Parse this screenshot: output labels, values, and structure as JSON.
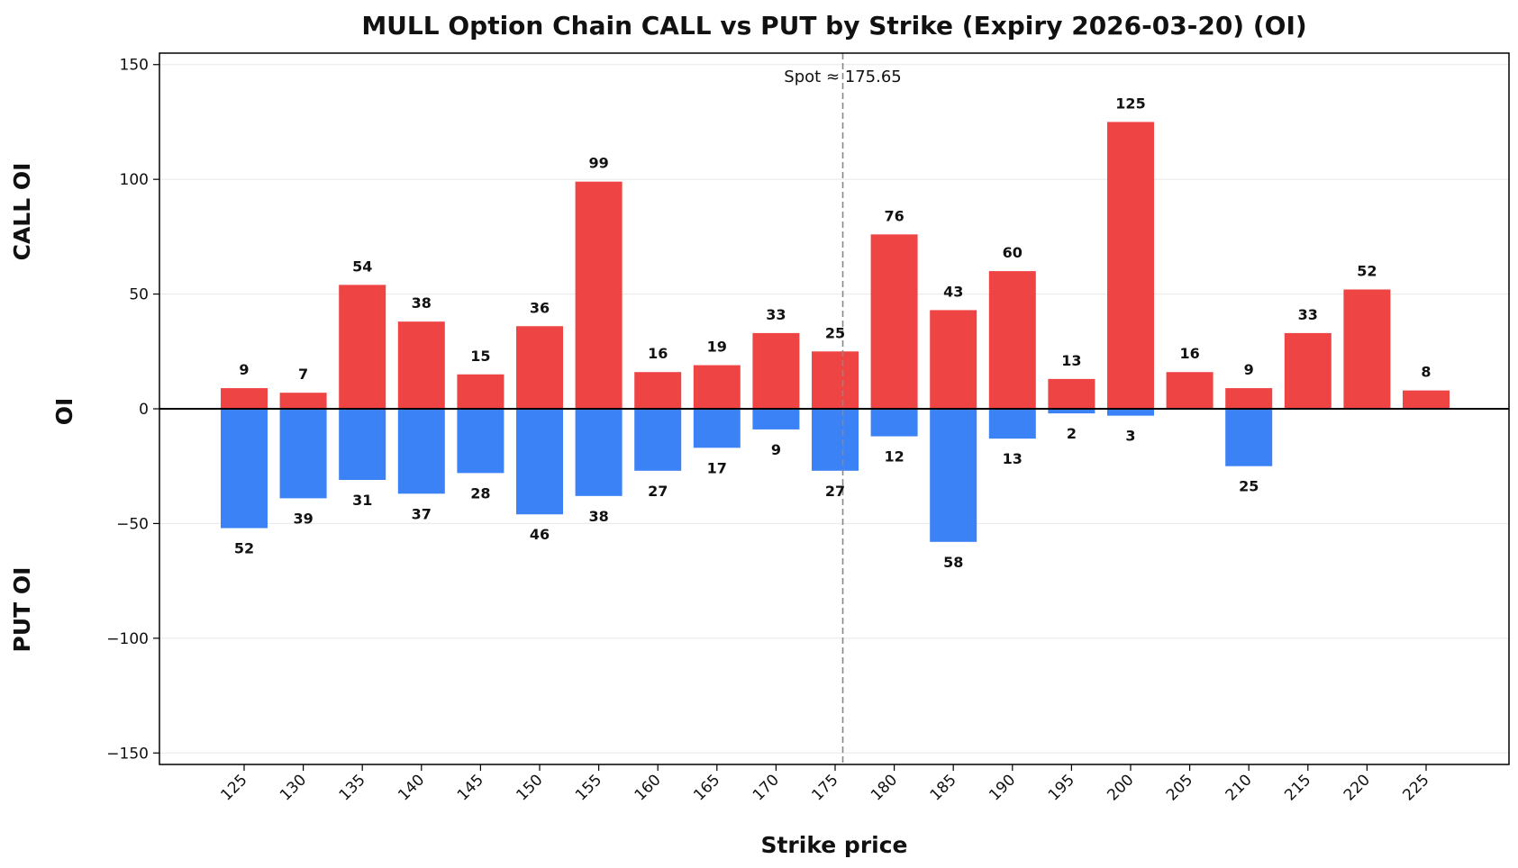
{
  "chart_data": {
    "type": "bar",
    "title": "MULL Option Chain CALL vs PUT by Strike (Expiry 2026-03-20) (OI)",
    "xlabel": "Strike price",
    "ylabel": "OI",
    "upper_label": "CALL OI",
    "lower_label": "PUT OI",
    "ylim": [
      -155,
      155
    ],
    "yticks": [
      -150,
      -100,
      -50,
      0,
      50,
      100,
      150
    ],
    "ytick_labels": [
      "−150",
      "−100",
      "−50",
      "0",
      "50",
      "100",
      "150"
    ],
    "grid": "horizontal",
    "categories": [
      "125",
      "130",
      "135",
      "140",
      "145",
      "150",
      "155",
      "160",
      "165",
      "170",
      "175",
      "180",
      "185",
      "190",
      "195",
      "200",
      "205",
      "210",
      "215",
      "220",
      "225"
    ],
    "series": [
      {
        "key": "call",
        "color": "#ef4444",
        "values": [
          9,
          7,
          54,
          38,
          15,
          36,
          99,
          16,
          19,
          33,
          25,
          76,
          43,
          60,
          13,
          125,
          16,
          9,
          33,
          52,
          8
        ]
      },
      {
        "key": "put",
        "color": "#3b82f6",
        "values": [
          52,
          39,
          31,
          37,
          28,
          46,
          38,
          27,
          17,
          9,
          27,
          12,
          58,
          13,
          2,
          3,
          0,
          25,
          0,
          0,
          0
        ]
      }
    ],
    "spot": {
      "value": 175.65,
      "label": "Spot ≈ 175.65"
    }
  }
}
